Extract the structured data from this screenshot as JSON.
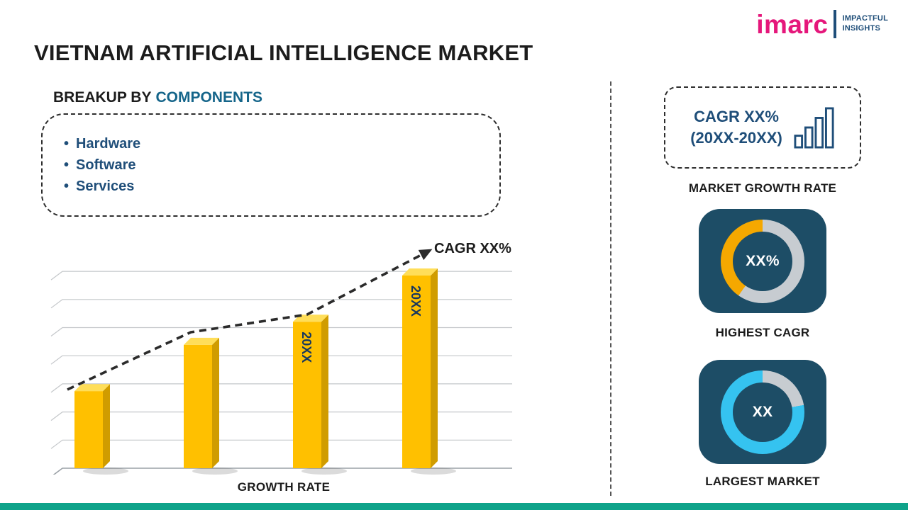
{
  "page": {
    "title": "VIETNAM ARTIFICIAL INTELLIGENCE MARKET"
  },
  "logo": {
    "brand": "imarc",
    "tagline": [
      "IMPACTFUL",
      "INSIGHTS"
    ]
  },
  "breakup": {
    "heading_prefix": "BREAKUP BY",
    "heading_highlight": "COMPONENTS",
    "items": [
      "Hardware",
      "Software",
      "Services"
    ]
  },
  "chart_data": {
    "type": "bar",
    "values": [
      30,
      48,
      57,
      75
    ],
    "bar_labels": [
      "",
      "",
      "20XX",
      "20XX"
    ],
    "xlabel": "GROWTH RATE",
    "trend_label": "CAGR XX%",
    "ylim": [
      0,
      80
    ],
    "grid": true,
    "legend": false,
    "bar_color": "#FFC000",
    "bar_side_color": "#D09C00",
    "bar_top_color": "#FFDE59",
    "trend_color": "#2b2b2b"
  },
  "sidebar": {
    "growth_box": {
      "line1": "CAGR XX%",
      "line2": "(20XX-20XX)",
      "caption": "MARKET GROWTH RATE"
    },
    "highest_cagr": {
      "value": "XX%",
      "caption": "HIGHEST CAGR",
      "ring": {
        "track": "#C7CCD1",
        "color": "#F5A800",
        "start_deg": 215,
        "end_deg": 360
      }
    },
    "largest_market": {
      "value": "XX",
      "caption": "LARGEST MARKET",
      "ring": {
        "track": "#C7CCD1",
        "color": "#35C3F0",
        "start_deg": 80,
        "end_deg": 360
      }
    }
  },
  "colors": {
    "navy": "#1F4E79",
    "heading_accent": "#15658A",
    "card_bg": "#1D4D66",
    "footer_bar": "#0FA38A",
    "brand_pink": "#E5177B",
    "bar_gold": "#FFC000"
  }
}
